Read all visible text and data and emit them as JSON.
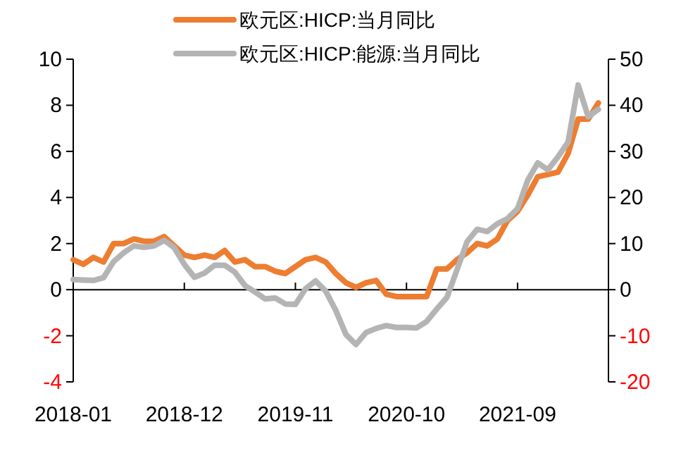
{
  "chart_data": {
    "type": "line",
    "legend": "top",
    "x": [
      "2018-01",
      "2018-02",
      "2018-03",
      "2018-04",
      "2018-05",
      "2018-06",
      "2018-07",
      "2018-08",
      "2018-09",
      "2018-10",
      "2018-11",
      "2018-12",
      "2019-01",
      "2019-02",
      "2019-03",
      "2019-04",
      "2019-05",
      "2019-06",
      "2019-07",
      "2019-08",
      "2019-09",
      "2019-10",
      "2019-11",
      "2019-12",
      "2020-01",
      "2020-02",
      "2020-03",
      "2020-04",
      "2020-05",
      "2020-06",
      "2020-07",
      "2020-08",
      "2020-09",
      "2020-10",
      "2020-11",
      "2020-12",
      "2021-01",
      "2021-02",
      "2021-03",
      "2021-04",
      "2021-05",
      "2021-06",
      "2021-07",
      "2021-08",
      "2021-09",
      "2021-10",
      "2021-11",
      "2021-12",
      "2022-01",
      "2022-02",
      "2022-03",
      "2022-04",
      "2022-05"
    ],
    "xlim": [
      "2018-01",
      "2022-06"
    ],
    "xticks": [
      "2018-01",
      "2018-12",
      "2019-11",
      "2020-10",
      "2021-09"
    ],
    "ylim": [
      -4,
      10
    ],
    "yticks": [
      -4,
      -2,
      0,
      2,
      4,
      6,
      8,
      10
    ],
    "y2lim": [
      -20,
      50
    ],
    "y2ticks": [
      -20,
      -10,
      0,
      10,
      20,
      30,
      40,
      50
    ],
    "series": [
      {
        "name": "欧元区:HICP:当月同比",
        "color": "#ed7d31",
        "values": [
          1.3,
          1.1,
          1.4,
          1.2,
          2.0,
          2.0,
          2.2,
          2.1,
          2.1,
          2.3,
          1.9,
          1.5,
          1.4,
          1.5,
          1.4,
          1.7,
          1.2,
          1.3,
          1.0,
          1.0,
          0.8,
          0.7,
          1.0,
          1.3,
          1.4,
          1.2,
          0.7,
          0.3,
          0.1,
          0.3,
          0.4,
          -0.2,
          -0.3,
          -0.3,
          -0.3,
          -0.3,
          0.9,
          0.9,
          1.3,
          1.6,
          2.0,
          1.9,
          2.2,
          3.0,
          3.4,
          4.1,
          4.9,
          5.0,
          5.1,
          5.9,
          7.4,
          7.4,
          8.1
        ]
      },
      {
        "name": "欧元区:HICP:能源:当月同比",
        "color": "#b4b4b4",
        "axis": "y2",
        "values": [
          2.2,
          2.1,
          2.0,
          2.6,
          6.1,
          8.0,
          9.5,
          9.2,
          9.5,
          10.7,
          9.1,
          5.5,
          2.7,
          3.6,
          5.3,
          5.3,
          3.8,
          0.9,
          -0.5,
          -2.0,
          -1.8,
          -3.1,
          -3.2,
          0.2,
          1.9,
          -0.3,
          -4.5,
          -9.7,
          -11.9,
          -9.3,
          -8.4,
          -7.8,
          -8.2,
          -8.2,
          -8.3,
          -6.9,
          -4.2,
          -1.7,
          4.3,
          10.4,
          13.1,
          12.6,
          14.3,
          15.4,
          17.6,
          23.7,
          27.5,
          26.0,
          28.8,
          32.0,
          44.4,
          37.5,
          39.1
        ]
      }
    ]
  }
}
